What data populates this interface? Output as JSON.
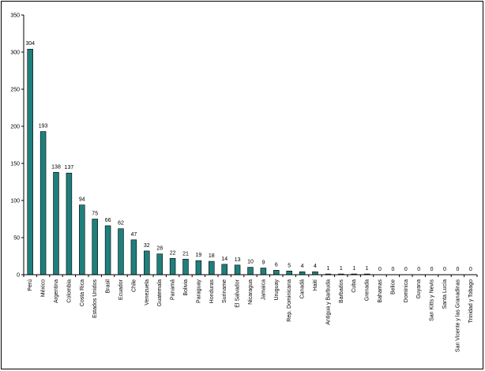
{
  "chart_data": {
    "type": "bar",
    "categories": [
      "Perú",
      "México",
      "Argentina",
      "Colombia",
      "Costa Rica",
      "Estados Unidos",
      "Brasil",
      "Ecuador",
      "Chile",
      "Venezuela",
      "Guatemala",
      "Panamá",
      "Bolivia",
      "Paraguay",
      "Honduras",
      "Suriname",
      "El Salvador",
      "Nicaragua",
      "Jamaica",
      "Uruguay",
      "Rep. Dominicana",
      "Canadá",
      "Haití",
      "Antigua y Barbuda",
      "Barbados",
      "Cuba",
      "Grenada",
      "Bahamas",
      "Belice",
      "Dominica",
      "Guyana",
      "San Kitts y Nevis",
      "Santa Lucía",
      "San Vicente y las Granadinas",
      "Trinidad y Tobago"
    ],
    "values": [
      304,
      193,
      138,
      137,
      94,
      75,
      66,
      62,
      47,
      32,
      28,
      22,
      21,
      19,
      18,
      14,
      13,
      10,
      9,
      6,
      5,
      4,
      4,
      1,
      1,
      1,
      1,
      0,
      0,
      0,
      0,
      0,
      0,
      0,
      0
    ],
    "title": "",
    "xlabel": "",
    "ylabel": "",
    "ylim": [
      0,
      350
    ],
    "yticks": [
      0,
      50,
      100,
      150,
      200,
      250,
      300,
      350
    ],
    "bar_color": "#1f7f7c",
    "bar_edge_color": "#000000",
    "grid": false,
    "legend": "none"
  }
}
